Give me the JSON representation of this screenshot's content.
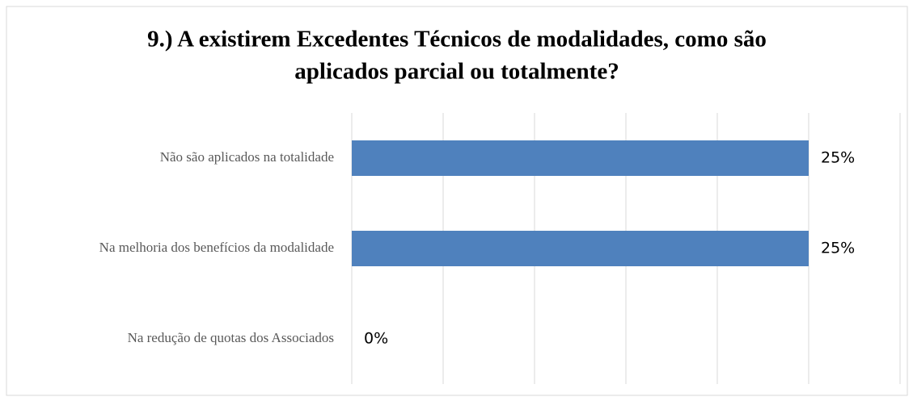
{
  "chart_data": {
    "type": "bar",
    "orientation": "horizontal",
    "title": [
      "9.) A existirem Excedentes Técnicos de modalidades, como são",
      "aplicados parcial ou totalmente?"
    ],
    "categories": [
      "Não são aplicados na totalidade",
      "Na melhoria dos benefícios da modalidade",
      "Na redução de quotas dos Associados"
    ],
    "values": [
      25,
      25,
      0
    ],
    "value_labels": [
      "25%",
      "25%",
      "0%"
    ],
    "color": "#4f81bd",
    "xlim": [
      0,
      30
    ],
    "xticks": [
      0,
      5,
      10,
      15,
      20,
      25,
      30
    ],
    "grid": true
  }
}
